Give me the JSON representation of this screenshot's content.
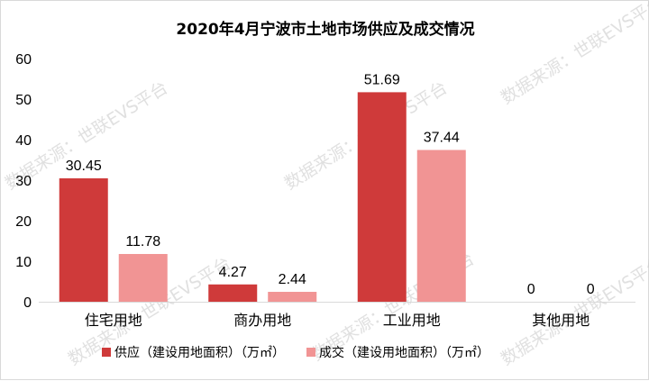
{
  "chart_data": {
    "type": "bar",
    "title": "2020年4月宁波市土地市场供应及成交情况",
    "categories": [
      "住宅用地",
      "商办用地",
      "工业用地",
      "其他用地"
    ],
    "series": [
      {
        "name": "供应（建设用地面积）（万㎡）",
        "values": [
          30.45,
          4.27,
          51.69,
          0
        ],
        "labels": [
          "30.45",
          "4.27",
          "51.69",
          "0"
        ],
        "color": "#cf3a3a"
      },
      {
        "name": "成交（建设用地面积）（万㎡）",
        "values": [
          11.78,
          2.44,
          37.44,
          0
        ],
        "labels": [
          "11.78",
          "2.44",
          "37.44",
          "0"
        ],
        "color": "#f19494"
      }
    ],
    "ylim": [
      0,
      60
    ],
    "yticks": [
      0,
      10,
      20,
      30,
      40,
      50,
      60
    ],
    "grid": false,
    "legend_position": "bottom"
  },
  "watermark": {
    "text": "数据来源：世联EVS平台"
  }
}
